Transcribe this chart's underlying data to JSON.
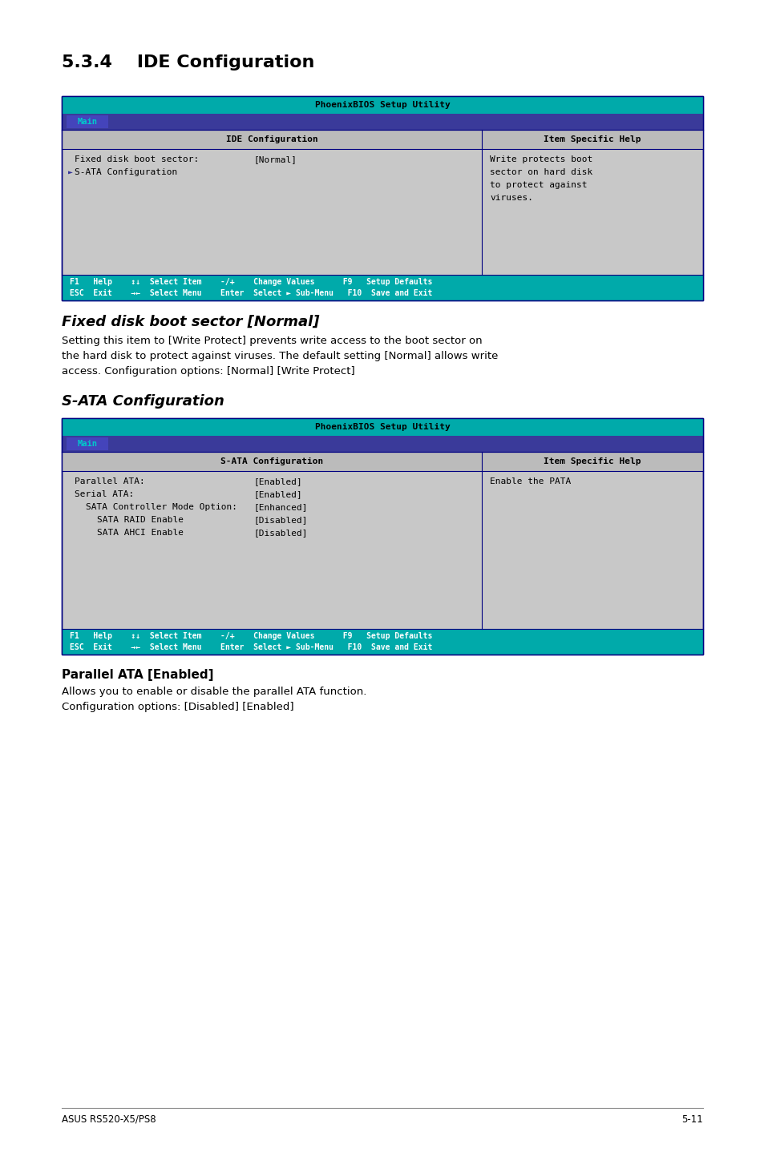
{
  "bg_color": "#ffffff",
  "bios_header_text": "PhoenixBIOS Setup Utility",
  "bios_header_bg": "#00aaaa",
  "bios_header_text_color": "#000000",
  "menu_tab_text": "Main",
  "menu_tab_bg": "#3a3a9a",
  "menu_tab_text_color": "#00cccc",
  "table_bg": "#c8c8c8",
  "col_header_bg": "#bbbbbb",
  "table_border": "#000080",
  "footer_bg": "#00aaaa",
  "footer_text_color": "#ffffff",
  "section_title": "5.3.4    IDE Configuration",
  "col1_header": "IDE Configuration",
  "col2_header": "Item Specific Help",
  "bios1_rows": [
    {
      "indent": 0,
      "arrow": false,
      "label": "Fixed disk boot sector:",
      "value": "[Normal]"
    },
    {
      "indent": 0,
      "arrow": true,
      "label": "S-ATA Configuration",
      "value": ""
    }
  ],
  "bios1_help_lines": [
    "Write protects boot",
    "sector on hard disk",
    "to protect against",
    "viruses."
  ],
  "fixed_disk_title": "Fixed disk boot sector [Normal]",
  "fixed_disk_body": "Setting this item to [Write Protect] prevents write access to the boot sector on\nthe hard disk to protect against viruses. The default setting [Normal] allows write\naccess. Configuration options: [Normal] [Write Protect]",
  "sata_section_title": "S-ATA Configuration",
  "bios2_col1_header": "S-ATA Configuration",
  "bios2_col2_header": "Item Specific Help",
  "bios2_rows": [
    {
      "indent": 0,
      "label": "Parallel ATA:",
      "value": "[Enabled]"
    },
    {
      "indent": 0,
      "label": "Serial ATA:",
      "value": "[Enabled]"
    },
    {
      "indent": 1,
      "label": "SATA Controller Mode Option:",
      "value": "[Enhanced]"
    },
    {
      "indent": 2,
      "label": "SATA RAID Enable",
      "value": "[Disabled]"
    },
    {
      "indent": 2,
      "label": "SATA AHCI Enable",
      "value": "[Disabled]"
    }
  ],
  "bios2_help_lines": [
    "Enable the PATA"
  ],
  "parallel_ata_title": "Parallel ATA [Enabled]",
  "parallel_ata_body": "Allows you to enable or disable the parallel ATA function.\nConfiguration options: [Disabled] [Enabled]",
  "footer_left": "ASUS RS520-X5/PS8",
  "footer_right": "5-11"
}
